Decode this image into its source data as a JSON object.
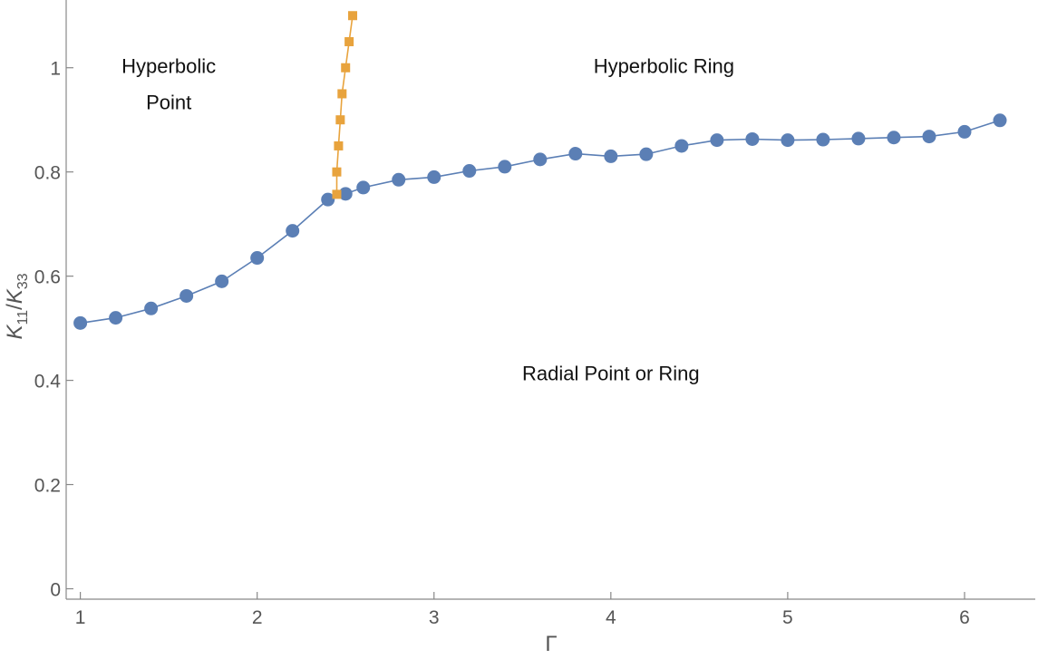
{
  "chart_data": {
    "type": "scatter",
    "title": "",
    "xlabel": "Γ",
    "ylabel_parts": {
      "k1": "K",
      "sub1": "11",
      "slash": "/",
      "k2": "K",
      "sub2": "33"
    },
    "xlim": [
      0.92,
      6.4
    ],
    "ylim": [
      -0.02,
      1.13
    ],
    "x_ticks": [
      1,
      2,
      3,
      4,
      5,
      6
    ],
    "y_ticks": [
      0,
      0.2,
      0.4,
      0.6,
      0.8,
      1
    ],
    "y_tick_labels": [
      "0",
      "0.2",
      "0.4",
      "0.6",
      "0.8",
      "1"
    ],
    "grid": false,
    "legend": "none",
    "series": [
      {
        "color": "#5b7fb5",
        "marker": "circle",
        "x": [
          1.0,
          1.2,
          1.4,
          1.6,
          1.8,
          2.0,
          2.2,
          2.4,
          2.5,
          2.6,
          2.8,
          3.0,
          3.2,
          3.4,
          3.6,
          3.8,
          4.0,
          4.2,
          4.4,
          4.6,
          4.8,
          5.0,
          5.2,
          5.4,
          5.6,
          5.8,
          6.0,
          6.2
        ],
        "y": [
          0.51,
          0.52,
          0.538,
          0.562,
          0.59,
          0.635,
          0.687,
          0.747,
          0.758,
          0.77,
          0.785,
          0.79,
          0.802,
          0.81,
          0.824,
          0.835,
          0.83,
          0.834,
          0.85,
          0.861,
          0.863,
          0.861,
          0.862,
          0.864,
          0.866,
          0.868,
          0.877,
          0.899
        ]
      },
      {
        "color": "#e8a33d",
        "marker": "square",
        "x": [
          2.45,
          2.45,
          2.46,
          2.47,
          2.48,
          2.5,
          2.52,
          2.54
        ],
        "y": [
          0.757,
          0.8,
          0.85,
          0.9,
          0.95,
          1.0,
          1.05,
          1.1
        ]
      }
    ],
    "annotations": [
      {
        "text": "Hyperbolic",
        "x": 1.5,
        "y": 0.99
      },
      {
        "text": "Point",
        "x": 1.5,
        "y": 0.92
      },
      {
        "text": "Hyperbolic Ring",
        "x": 4.3,
        "y": 0.99
      },
      {
        "text": "Radial Point or Ring",
        "x": 4.0,
        "y": 0.4
      }
    ]
  }
}
